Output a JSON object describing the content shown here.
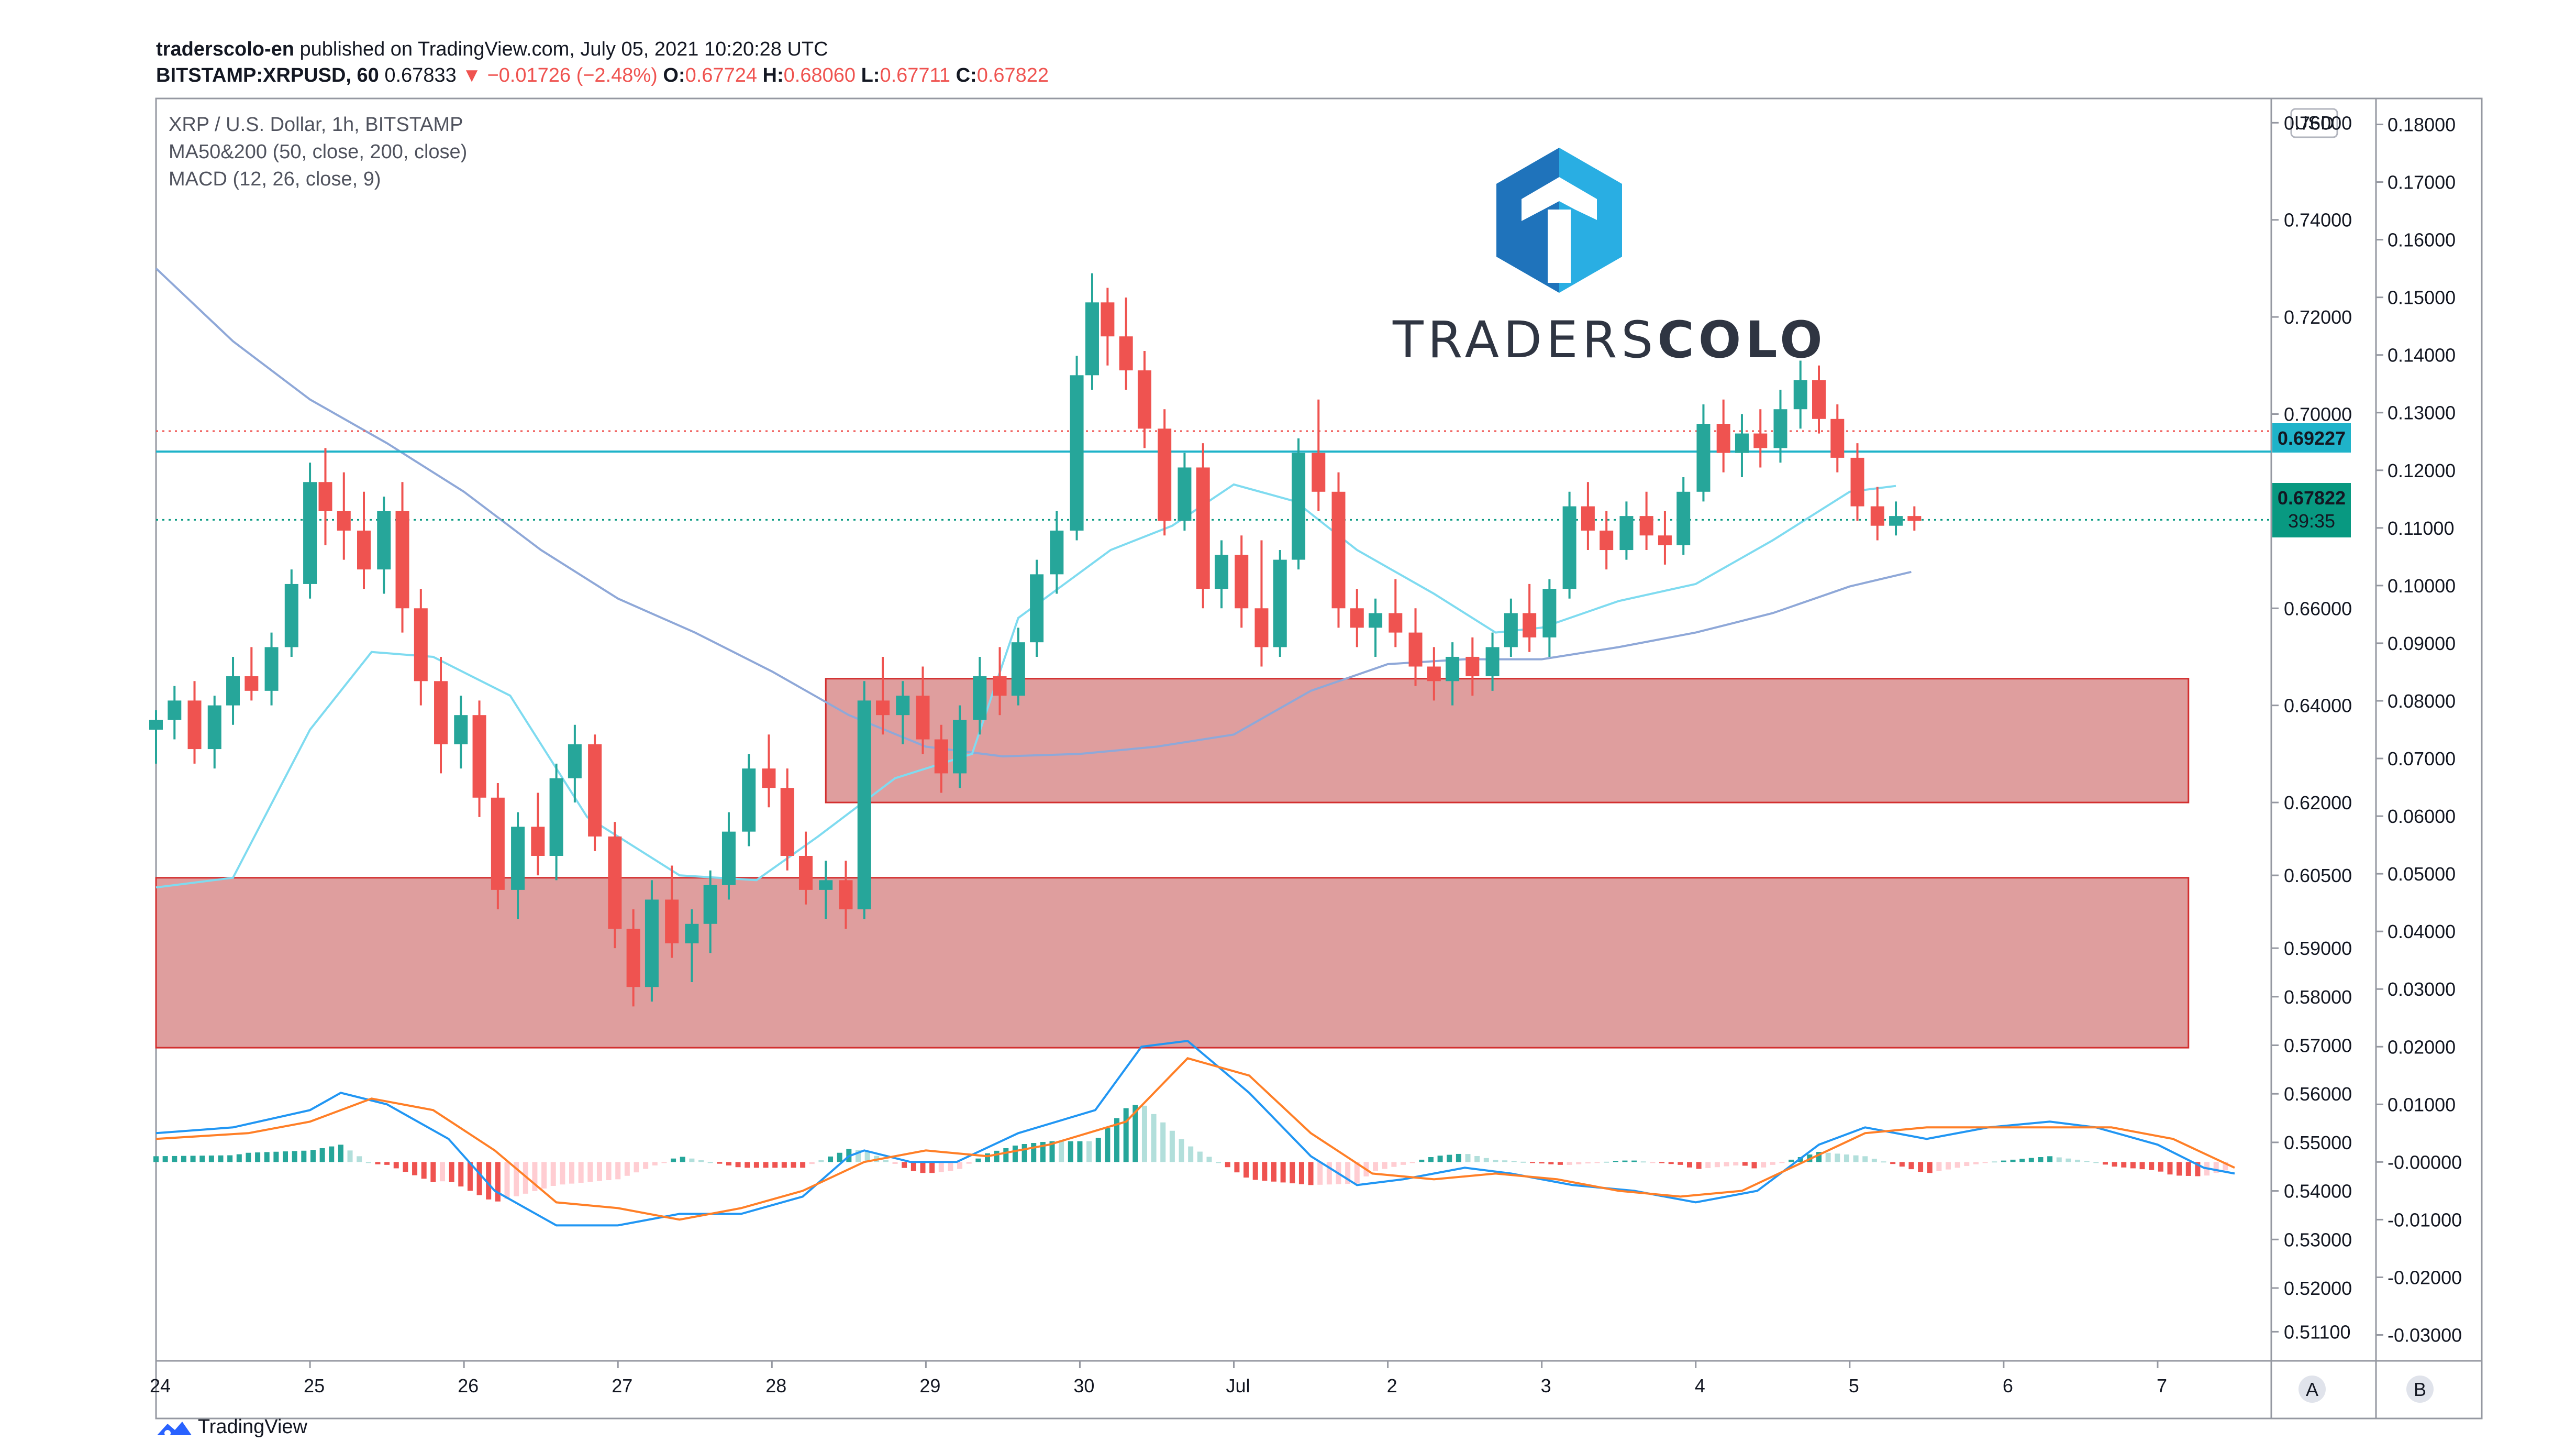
{
  "header": {
    "user": "traderscolo-en",
    "published": "published on TradingView.com, July 05, 2021 10:20:28 UTC",
    "symbol": "BITSTAMP:XRPUSD, 60",
    "last": "0.67833",
    "change": "▼ −0.01726 (−2.48%)",
    "o_label": "O:",
    "o": "0.67724",
    "h_label": "H:",
    "h": "0.68060",
    "l_label": "L:",
    "l": "0.67711",
    "c_label": "C:",
    "c": "0.67822"
  },
  "legend": {
    "line1": "XRP / U.S. Dollar, 1h, BITSTAMP",
    "line2": "MA50&200 (50, close, 200, close)",
    "line3": "MACD (12, 26, close, 9)"
  },
  "brand": {
    "name_light": "TRADERS",
    "name_bold": "COLO"
  },
  "badges": {
    "currency": "USD",
    "level_price": "0.69227",
    "last_price": "0.67822",
    "countdown": "39:35"
  },
  "footer": {
    "label": "TradingView"
  },
  "buttons": {
    "a": "A",
    "b": "B"
  },
  "colors": {
    "up": "#26a69a",
    "down": "#ef5350",
    "ma50": "#7fdbf0",
    "ma200": "#8fa8d8",
    "zone": "#d98d8d",
    "zone_border": "#d32f2f",
    "level": "#1fb3c9",
    "macd": "#2196f3",
    "signal": "#ff7f27"
  },
  "chart_data": [
    {
      "type": "candlestick",
      "title": "XRP / U.S. Dollar, 1h, BITSTAMP",
      "x_ticks": [
        "24",
        "25",
        "26",
        "27",
        "28",
        "29",
        "30",
        "Jul",
        "2",
        "3",
        "4",
        "5",
        "6",
        "7"
      ],
      "y_ticks": [
        "0.76000",
        "0.74000",
        "0.72000",
        "0.70000",
        "0.66000",
        "0.64000",
        "0.62000",
        "0.60500",
        "0.59000",
        "0.58000",
        "0.57000",
        "0.56000",
        "0.55000",
        "0.54000",
        "0.53000",
        "0.52000",
        "0.51100"
      ],
      "ylim": [
        0.505,
        0.765
      ],
      "ma50": [
        [
          24.0,
          0.6025
        ],
        [
          24.5,
          0.6045
        ],
        [
          25.0,
          0.635
        ],
        [
          25.4,
          0.651
        ],
        [
          25.8,
          0.65
        ],
        [
          26.3,
          0.642
        ],
        [
          26.8,
          0.617
        ],
        [
          27.4,
          0.605
        ],
        [
          27.9,
          0.604
        ],
        [
          28.3,
          0.613
        ],
        [
          28.8,
          0.625
        ],
        [
          29.3,
          0.63
        ],
        [
          29.6,
          0.658
        ],
        [
          30.2,
          0.672
        ],
        [
          30.6,
          0.677
        ],
        [
          31.0,
          0.6855
        ],
        [
          31.4,
          0.682
        ],
        [
          31.8,
          0.672
        ],
        [
          32.3,
          0.663
        ],
        [
          32.7,
          0.655
        ],
        [
          33.0,
          0.656
        ],
        [
          33.5,
          0.6615
        ],
        [
          34.0,
          0.665
        ],
        [
          34.5,
          0.674
        ],
        [
          35.0,
          0.684
        ],
        [
          35.3,
          0.6852
        ]
      ],
      "ma200": [
        [
          24.0,
          0.73
        ],
        [
          24.5,
          0.715
        ],
        [
          25.0,
          0.703
        ],
        [
          25.5,
          0.694
        ],
        [
          26.0,
          0.684
        ],
        [
          26.5,
          0.672
        ],
        [
          27.0,
          0.662
        ],
        [
          27.5,
          0.655
        ],
        [
          28.0,
          0.647
        ],
        [
          28.5,
          0.638
        ],
        [
          29.0,
          0.6315
        ],
        [
          29.5,
          0.6295
        ],
        [
          30.0,
          0.63
        ],
        [
          30.5,
          0.6315
        ],
        [
          31.0,
          0.634
        ],
        [
          31.5,
          0.643
        ],
        [
          32.0,
          0.6485
        ],
        [
          32.5,
          0.6495
        ],
        [
          33.0,
          0.6495
        ],
        [
          33.5,
          0.652
        ],
        [
          34.0,
          0.655
        ],
        [
          34.5,
          0.659
        ],
        [
          35.0,
          0.6645
        ],
        [
          35.4,
          0.6675
        ]
      ],
      "level_line": 0.69227,
      "last_price_line": 0.67822,
      "zones": [
        {
          "x_start": 28.35,
          "x_end": 37.2,
          "y_low": 0.62,
          "y_high": 0.6455
        },
        {
          "x_start": 24.0,
          "x_end": 37.2,
          "y_low": 0.5695,
          "y_high": 0.6045
        }
      ],
      "candles": [
        [
          24.0,
          0.635,
          0.639,
          0.628,
          0.637
        ],
        [
          24.12,
          0.637,
          0.644,
          0.633,
          0.641
        ],
        [
          24.25,
          0.641,
          0.645,
          0.628,
          0.631
        ],
        [
          24.38,
          0.631,
          0.642,
          0.627,
          0.64
        ],
        [
          24.5,
          0.64,
          0.65,
          0.636,
          0.646
        ],
        [
          24.62,
          0.646,
          0.652,
          0.641,
          0.643
        ],
        [
          24.75,
          0.643,
          0.655,
          0.64,
          0.652
        ],
        [
          24.88,
          0.652,
          0.668,
          0.65,
          0.665
        ],
        [
          25.0,
          0.665,
          0.69,
          0.662,
          0.686
        ],
        [
          25.1,
          0.686,
          0.693,
          0.673,
          0.68
        ],
        [
          25.22,
          0.68,
          0.688,
          0.67,
          0.676
        ],
        [
          25.35,
          0.676,
          0.684,
          0.664,
          0.668
        ],
        [
          25.48,
          0.668,
          0.683,
          0.663,
          0.68
        ],
        [
          25.6,
          0.68,
          0.686,
          0.655,
          0.66
        ],
        [
          25.72,
          0.66,
          0.664,
          0.64,
          0.645
        ],
        [
          25.85,
          0.645,
          0.65,
          0.626,
          0.632
        ],
        [
          25.98,
          0.632,
          0.642,
          0.627,
          0.638
        ],
        [
          26.1,
          0.638,
          0.641,
          0.617,
          0.621
        ],
        [
          26.22,
          0.621,
          0.624,
          0.598,
          0.602
        ],
        [
          26.35,
          0.602,
          0.618,
          0.596,
          0.615
        ],
        [
          26.48,
          0.615,
          0.622,
          0.605,
          0.609
        ],
        [
          26.6,
          0.609,
          0.628,
          0.604,
          0.625
        ],
        [
          26.72,
          0.625,
          0.636,
          0.62,
          0.632
        ],
        [
          26.85,
          0.632,
          0.634,
          0.61,
          0.613
        ],
        [
          26.98,
          0.613,
          0.616,
          0.59,
          0.594
        ],
        [
          27.1,
          0.594,
          0.598,
          0.578,
          0.582
        ],
        [
          27.22,
          0.582,
          0.604,
          0.579,
          0.6
        ],
        [
          27.35,
          0.6,
          0.607,
          0.588,
          0.591
        ],
        [
          27.48,
          0.591,
          0.598,
          0.583,
          0.595
        ],
        [
          27.6,
          0.595,
          0.606,
          0.589,
          0.603
        ],
        [
          27.72,
          0.603,
          0.618,
          0.6,
          0.614
        ],
        [
          27.85,
          0.614,
          0.63,
          0.611,
          0.627
        ],
        [
          27.98,
          0.627,
          0.634,
          0.619,
          0.623
        ],
        [
          28.1,
          0.623,
          0.627,
          0.606,
          0.609
        ],
        [
          28.22,
          0.609,
          0.614,
          0.599,
          0.602
        ],
        [
          28.35,
          0.602,
          0.608,
          0.596,
          0.604
        ],
        [
          28.48,
          0.604,
          0.608,
          0.594,
          0.598
        ],
        [
          28.6,
          0.598,
          0.645,
          0.596,
          0.641
        ],
        [
          28.72,
          0.641,
          0.65,
          0.634,
          0.638
        ],
        [
          28.85,
          0.638,
          0.645,
          0.632,
          0.642
        ],
        [
          28.98,
          0.642,
          0.648,
          0.63,
          0.633
        ],
        [
          29.1,
          0.633,
          0.636,
          0.622,
          0.626
        ],
        [
          29.22,
          0.626,
          0.64,
          0.623,
          0.637
        ],
        [
          29.35,
          0.637,
          0.65,
          0.634,
          0.646
        ],
        [
          29.48,
          0.646,
          0.652,
          0.638,
          0.642
        ],
        [
          29.6,
          0.642,
          0.656,
          0.64,
          0.653
        ],
        [
          29.72,
          0.653,
          0.67,
          0.65,
          0.667
        ],
        [
          29.85,
          0.667,
          0.68,
          0.663,
          0.676
        ],
        [
          29.98,
          0.676,
          0.712,
          0.674,
          0.708
        ],
        [
          30.08,
          0.708,
          0.729,
          0.705,
          0.723
        ],
        [
          30.18,
          0.723,
          0.726,
          0.71,
          0.716
        ],
        [
          30.3,
          0.716,
          0.724,
          0.705,
          0.709
        ],
        [
          30.42,
          0.709,
          0.713,
          0.693,
          0.697
        ],
        [
          30.55,
          0.697,
          0.701,
          0.675,
          0.678
        ],
        [
          30.68,
          0.678,
          0.692,
          0.676,
          0.689
        ],
        [
          30.8,
          0.689,
          0.694,
          0.66,
          0.664
        ],
        [
          30.92,
          0.664,
          0.674,
          0.66,
          0.671
        ],
        [
          31.05,
          0.671,
          0.675,
          0.656,
          0.66
        ],
        [
          31.18,
          0.66,
          0.674,
          0.648,
          0.652
        ],
        [
          31.3,
          0.652,
          0.672,
          0.65,
          0.67
        ],
        [
          31.42,
          0.67,
          0.695,
          0.668,
          0.692
        ],
        [
          31.55,
          0.692,
          0.703,
          0.68,
          0.684
        ],
        [
          31.68,
          0.684,
          0.688,
          0.656,
          0.66
        ],
        [
          31.8,
          0.66,
          0.664,
          0.652,
          0.656
        ],
        [
          31.92,
          0.656,
          0.662,
          0.65,
          0.659
        ],
        [
          32.05,
          0.659,
          0.666,
          0.652,
          0.655
        ],
        [
          32.18,
          0.655,
          0.66,
          0.644,
          0.648
        ],
        [
          32.3,
          0.648,
          0.652,
          0.641,
          0.645
        ],
        [
          32.42,
          0.645,
          0.653,
          0.64,
          0.65
        ],
        [
          32.55,
          0.65,
          0.654,
          0.642,
          0.646
        ],
        [
          32.68,
          0.646,
          0.655,
          0.643,
          0.652
        ],
        [
          32.8,
          0.652,
          0.662,
          0.65,
          0.659
        ],
        [
          32.92,
          0.659,
          0.665,
          0.651,
          0.654
        ],
        [
          33.05,
          0.654,
          0.666,
          0.65,
          0.664
        ],
        [
          33.18,
          0.664,
          0.684,
          0.662,
          0.681
        ],
        [
          33.3,
          0.681,
          0.686,
          0.672,
          0.676
        ],
        [
          33.42,
          0.676,
          0.68,
          0.668,
          0.672
        ],
        [
          33.55,
          0.672,
          0.682,
          0.67,
          0.679
        ],
        [
          33.68,
          0.679,
          0.684,
          0.672,
          0.675
        ],
        [
          33.8,
          0.675,
          0.68,
          0.669,
          0.673
        ],
        [
          33.92,
          0.673,
          0.687,
          0.671,
          0.684
        ],
        [
          34.05,
          0.684,
          0.702,
          0.682,
          0.698
        ],
        [
          34.18,
          0.698,
          0.703,
          0.688,
          0.692
        ],
        [
          34.3,
          0.692,
          0.7,
          0.687,
          0.696
        ],
        [
          34.42,
          0.696,
          0.701,
          0.689,
          0.693
        ],
        [
          34.55,
          0.693,
          0.705,
          0.69,
          0.701
        ],
        [
          34.68,
          0.701,
          0.711,
          0.697,
          0.707
        ],
        [
          34.8,
          0.707,
          0.71,
          0.696,
          0.699
        ],
        [
          34.92,
          0.699,
          0.702,
          0.688,
          0.691
        ],
        [
          35.05,
          0.691,
          0.694,
          0.678,
          0.681
        ],
        [
          35.18,
          0.681,
          0.685,
          0.674,
          0.677
        ],
        [
          35.3,
          0.677,
          0.682,
          0.675,
          0.679
        ],
        [
          35.42,
          0.679,
          0.681,
          0.676,
          0.678
        ]
      ]
    },
    {
      "type": "macd",
      "title": "MACD (12, 26, close, 9)",
      "y_ticks": [
        "0.18000",
        "0.17000",
        "0.16000",
        "0.15000",
        "0.14000",
        "0.13000",
        "0.12000",
        "0.11000",
        "0.10000",
        "0.09000",
        "0.08000",
        "0.07000",
        "0.06000",
        "0.05000",
        "0.04000",
        "0.03000",
        "0.02000",
        "0.01000",
        "-0.00000",
        "-0.01000",
        "-0.02000",
        "-0.03000"
      ],
      "ylim": [
        -0.0345,
        0.1845
      ],
      "macd": [
        [
          24.0,
          0.005
        ],
        [
          24.5,
          0.006
        ],
        [
          25.0,
          0.009
        ],
        [
          25.2,
          0.012
        ],
        [
          25.5,
          0.01
        ],
        [
          25.9,
          0.004
        ],
        [
          26.2,
          -0.005
        ],
        [
          26.6,
          -0.011
        ],
        [
          27.0,
          -0.011
        ],
        [
          27.4,
          -0.009
        ],
        [
          27.8,
          -0.009
        ],
        [
          28.2,
          -0.006
        ],
        [
          28.5,
          0.001
        ],
        [
          28.6,
          0.002
        ],
        [
          28.9,
          0.0
        ],
        [
          29.2,
          0.0
        ],
        [
          29.6,
          0.005
        ],
        [
          30.1,
          0.009
        ],
        [
          30.4,
          0.02
        ],
        [
          30.7,
          0.021
        ],
        [
          31.1,
          0.012
        ],
        [
          31.5,
          0.001
        ],
        [
          31.8,
          -0.004
        ],
        [
          32.1,
          -0.003
        ],
        [
          32.5,
          -0.001
        ],
        [
          32.8,
          -0.002
        ],
        [
          33.2,
          -0.004
        ],
        [
          33.6,
          -0.005
        ],
        [
          34.0,
          -0.007
        ],
        [
          34.4,
          -0.005
        ],
        [
          34.8,
          0.003
        ],
        [
          35.1,
          0.006
        ],
        [
          35.5,
          0.004
        ],
        [
          35.9,
          0.006
        ],
        [
          36.3,
          0.007
        ],
        [
          36.6,
          0.006
        ],
        [
          37.0,
          0.003
        ],
        [
          37.3,
          -0.001
        ],
        [
          37.5,
          -0.002
        ]
      ],
      "signal": [
        [
          24.0,
          0.004
        ],
        [
          24.6,
          0.005
        ],
        [
          25.0,
          0.007
        ],
        [
          25.4,
          0.011
        ],
        [
          25.8,
          0.009
        ],
        [
          26.2,
          0.002
        ],
        [
          26.6,
          -0.007
        ],
        [
          27.0,
          -0.008
        ],
        [
          27.4,
          -0.01
        ],
        [
          27.8,
          -0.008
        ],
        [
          28.2,
          -0.005
        ],
        [
          28.6,
          0.0
        ],
        [
          29.0,
          0.002
        ],
        [
          29.4,
          0.001
        ],
        [
          29.8,
          0.003
        ],
        [
          30.3,
          0.007
        ],
        [
          30.7,
          0.018
        ],
        [
          31.1,
          0.015
        ],
        [
          31.5,
          0.005
        ],
        [
          31.9,
          -0.002
        ],
        [
          32.3,
          -0.003
        ],
        [
          32.7,
          -0.002
        ],
        [
          33.1,
          -0.003
        ],
        [
          33.5,
          -0.005
        ],
        [
          33.9,
          -0.006
        ],
        [
          34.3,
          -0.005
        ],
        [
          34.7,
          0.0
        ],
        [
          35.1,
          0.005
        ],
        [
          35.5,
          0.006
        ],
        [
          35.9,
          0.006
        ],
        [
          36.3,
          0.006
        ],
        [
          36.7,
          0.006
        ],
        [
          37.1,
          0.004
        ],
        [
          37.5,
          -0.001
        ]
      ]
    }
  ]
}
